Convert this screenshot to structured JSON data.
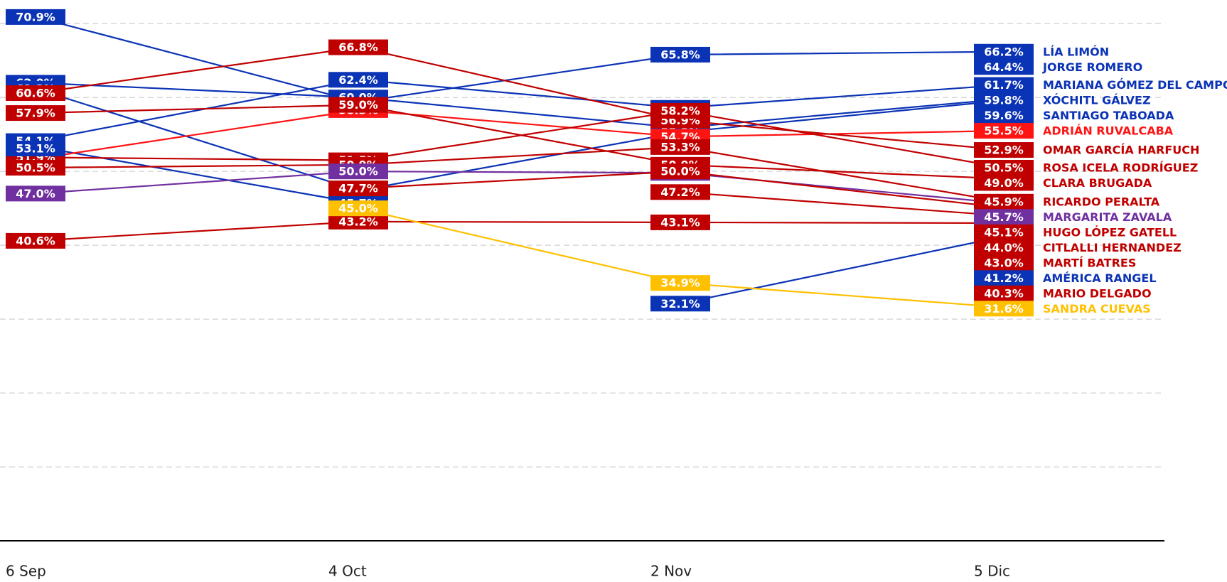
{
  "chart_data": {
    "type": "line",
    "categories": [
      "6 Sep",
      "4 Oct",
      "2 Nov",
      "5 Dic"
    ],
    "ylim": [
      0,
      73.2
    ],
    "yticks": [
      0,
      10,
      20,
      30,
      40,
      50,
      60,
      70
    ],
    "grid": true,
    "series": [
      {
        "name": "LÍA LIMÓN",
        "color": "#0b33b5",
        "values": [
          70.9,
          59.4,
          65.8,
          66.2
        ],
        "value_labels": [
          "70.9%",
          "59.4%",
          "65.8%",
          "66.2%"
        ]
      },
      {
        "name": "JORGE ROMERO",
        "color": "#0b33b5",
        "values": [
          53.4,
          45.7,
          null,
          64.4
        ],
        "value_labels": [
          "53.4%",
          "45.7%",
          null,
          "64.4%"
        ]
      },
      {
        "name": "MARIANA GÓMEZ DEL CAMPO",
        "color": "#0b33b5",
        "values": [
          54.1,
          62.4,
          58.6,
          61.7
        ],
        "value_labels": [
          "54.1%",
          "62.4%",
          "58.6%",
          "61.7%"
        ]
      },
      {
        "name": "XÓCHITL GÁLVEZ",
        "color": "#0b33b5",
        "values": [
          62.0,
          60.0,
          55.9,
          59.8
        ],
        "value_labels": [
          "62.0%",
          "60.0%",
          "55.9%",
          "59.8%"
        ]
      },
      {
        "name": "SANTIAGO TABOADA",
        "color": "#0b33b5",
        "values": [
          61.2,
          47.4,
          55.3,
          59.6
        ],
        "value_labels": [
          "61.2%",
          "47.4%",
          "55.3%",
          "59.6%"
        ]
      },
      {
        "name": "ADRIÁN RUVALCABA",
        "color": "#ff1414",
        "values": [
          51.7,
          58.3,
          54.7,
          55.5
        ],
        "value_labels": [
          "51.7%",
          "58.3%",
          "54.7%",
          "55.5%"
        ]
      },
      {
        "name": "OMAR GARCÍA HARFUCH",
        "color": "#c00000",
        "values": [
          60.6,
          66.8,
          56.9,
          52.9
        ],
        "value_labels": [
          "60.6%",
          "66.8%",
          "56.9%",
          "52.9%"
        ]
      },
      {
        "name": "ROSA ICELA RODRÍGUEZ",
        "color": "#c00000",
        "values": [
          51.9,
          51.5,
          58.2,
          50.5
        ],
        "value_labels": [
          "51.9%",
          "51.5%",
          "58.2%",
          "50.5%"
        ]
      },
      {
        "name": "CLARA BRUGADA",
        "color": "#c00000",
        "values": [
          57.9,
          59.0,
          50.9,
          49.0
        ],
        "value_labels": [
          "57.9%",
          "59.0%",
          "50.9%",
          "49.0%"
        ]
      },
      {
        "name": "RICARDO PERALTA",
        "color": "#c00000",
        "values": [
          50.5,
          50.9,
          53.3,
          45.9
        ],
        "value_labels": [
          "50.5%",
          "50.9%",
          "53.3%",
          "45.9%"
        ]
      },
      {
        "name": "MARGARITA ZAVALA",
        "color": "#7030a0",
        "values": [
          47.0,
          50.0,
          49.8,
          45.7
        ],
        "value_labels": [
          "47.0%",
          "50.0%",
          "49.8%",
          "45.7%"
        ]
      },
      {
        "name": "HUGO LÓPEZ GATELL",
        "color": "#c00000",
        "values": [
          null,
          47.7,
          50.0,
          45.1
        ],
        "value_labels": [
          null,
          "47.7%",
          "50.0%",
          "45.1%"
        ]
      },
      {
        "name": "CITLALLI HERNANDEZ",
        "color": "#c00000",
        "values": [
          null,
          null,
          47.2,
          44.0
        ],
        "value_labels": [
          null,
          null,
          "47.2%",
          "44.0%"
        ]
      },
      {
        "name": "MARTÍ BATRES",
        "color": "#c00000",
        "values": [
          40.6,
          43.2,
          43.1,
          43.0
        ],
        "value_labels": [
          "40.6%",
          "43.2%",
          "43.1%",
          "43.0%"
        ]
      },
      {
        "name": "AMÉRICA RANGEL",
        "color": "#0b33b5",
        "values": [
          53.1,
          null,
          32.1,
          41.2
        ],
        "value_labels": [
          "53.1%",
          null,
          "32.1%",
          "41.2%"
        ]
      },
      {
        "name": "MARIO DELGADO",
        "color": "#c00000",
        "values": [
          null,
          null,
          null,
          40.3
        ],
        "value_labels": [
          null,
          null,
          null,
          "40.3%"
        ]
      },
      {
        "name": "SANDRA CUEVAS",
        "color": "#ffc000",
        "values": [
          null,
          45.0,
          34.9,
          31.6
        ],
        "value_labels": [
          null,
          "45.0%",
          "34.9%",
          "31.6%"
        ]
      }
    ]
  }
}
